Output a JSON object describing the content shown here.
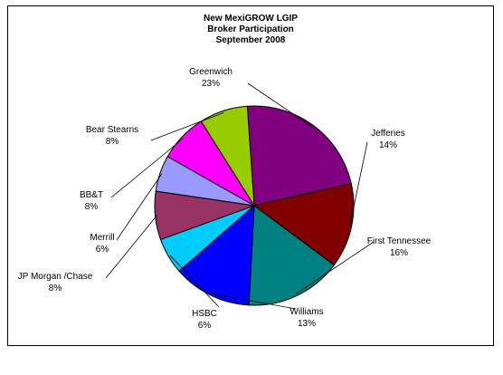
{
  "chart_data": {
    "type": "pie",
    "title_lines": [
      "New MexiGROW LGIP",
      "Broker Participation",
      "September 2008"
    ],
    "legend": "none",
    "slices": [
      {
        "label": "Greenwich",
        "percent_label": "23%",
        "value": 23,
        "color": "#800080"
      },
      {
        "label": "Jefferies",
        "percent_label": "14%",
        "value": 14,
        "color": "#800000"
      },
      {
        "label": "First Tennessee",
        "percent_label": "16%",
        "value": 16,
        "color": "#008080"
      },
      {
        "label": "Williams",
        "percent_label": "13%",
        "value": 13,
        "color": "#0000FF"
      },
      {
        "label": "HSBC",
        "percent_label": "6%",
        "value": 6,
        "color": "#00CCFF"
      },
      {
        "label": "JP Morgan /Chase",
        "percent_label": "8%",
        "value": 8,
        "color": "#993366"
      },
      {
        "label": "Merrill",
        "percent_label": "6%",
        "value": 6,
        "color": "#9999FF"
      },
      {
        "label": "BB&T",
        "percent_label": "8%",
        "value": 8,
        "color": "#FF00FF"
      },
      {
        "label": "Bear Stearns",
        "percent_label": "8%",
        "value": 8,
        "color": "#99CC00"
      }
    ]
  }
}
